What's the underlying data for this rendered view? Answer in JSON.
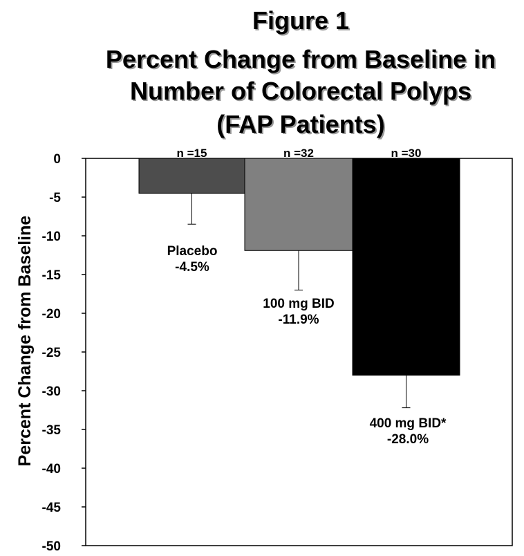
{
  "chart_data": {
    "type": "bar",
    "title": "Figure 1",
    "subtitle": [
      "Percent Change from Baseline in",
      "Number of Colorectal Polyps",
      "(FAP Patients)"
    ],
    "ylabel": "Percent Change from Baseline",
    "xlabel": "",
    "ylim": [
      -50,
      0
    ],
    "yticks": [
      0,
      -5,
      -10,
      -15,
      -20,
      -25,
      -30,
      -35,
      -40,
      -45,
      -50
    ],
    "ytick_labels": [
      "0",
      "-5",
      "-10",
      "-15",
      "-20",
      "-25",
      "-30",
      "-35",
      "-40",
      "-45",
      "-50"
    ],
    "grid": false,
    "categories": [
      "Placebo",
      "100 mg BID",
      "400 mg BID*"
    ],
    "values": [
      -4.5,
      -11.9,
      -28.0
    ],
    "error_low": [
      -8.5,
      -17.0,
      -32.2
    ],
    "value_labels": [
      "-4.5%",
      "-11.9%",
      "-28.0%"
    ],
    "n_labels": [
      "n =15",
      "n =32",
      "n =30"
    ],
    "colors": [
      "#4d4d4d",
      "#808080",
      "#000000"
    ]
  }
}
